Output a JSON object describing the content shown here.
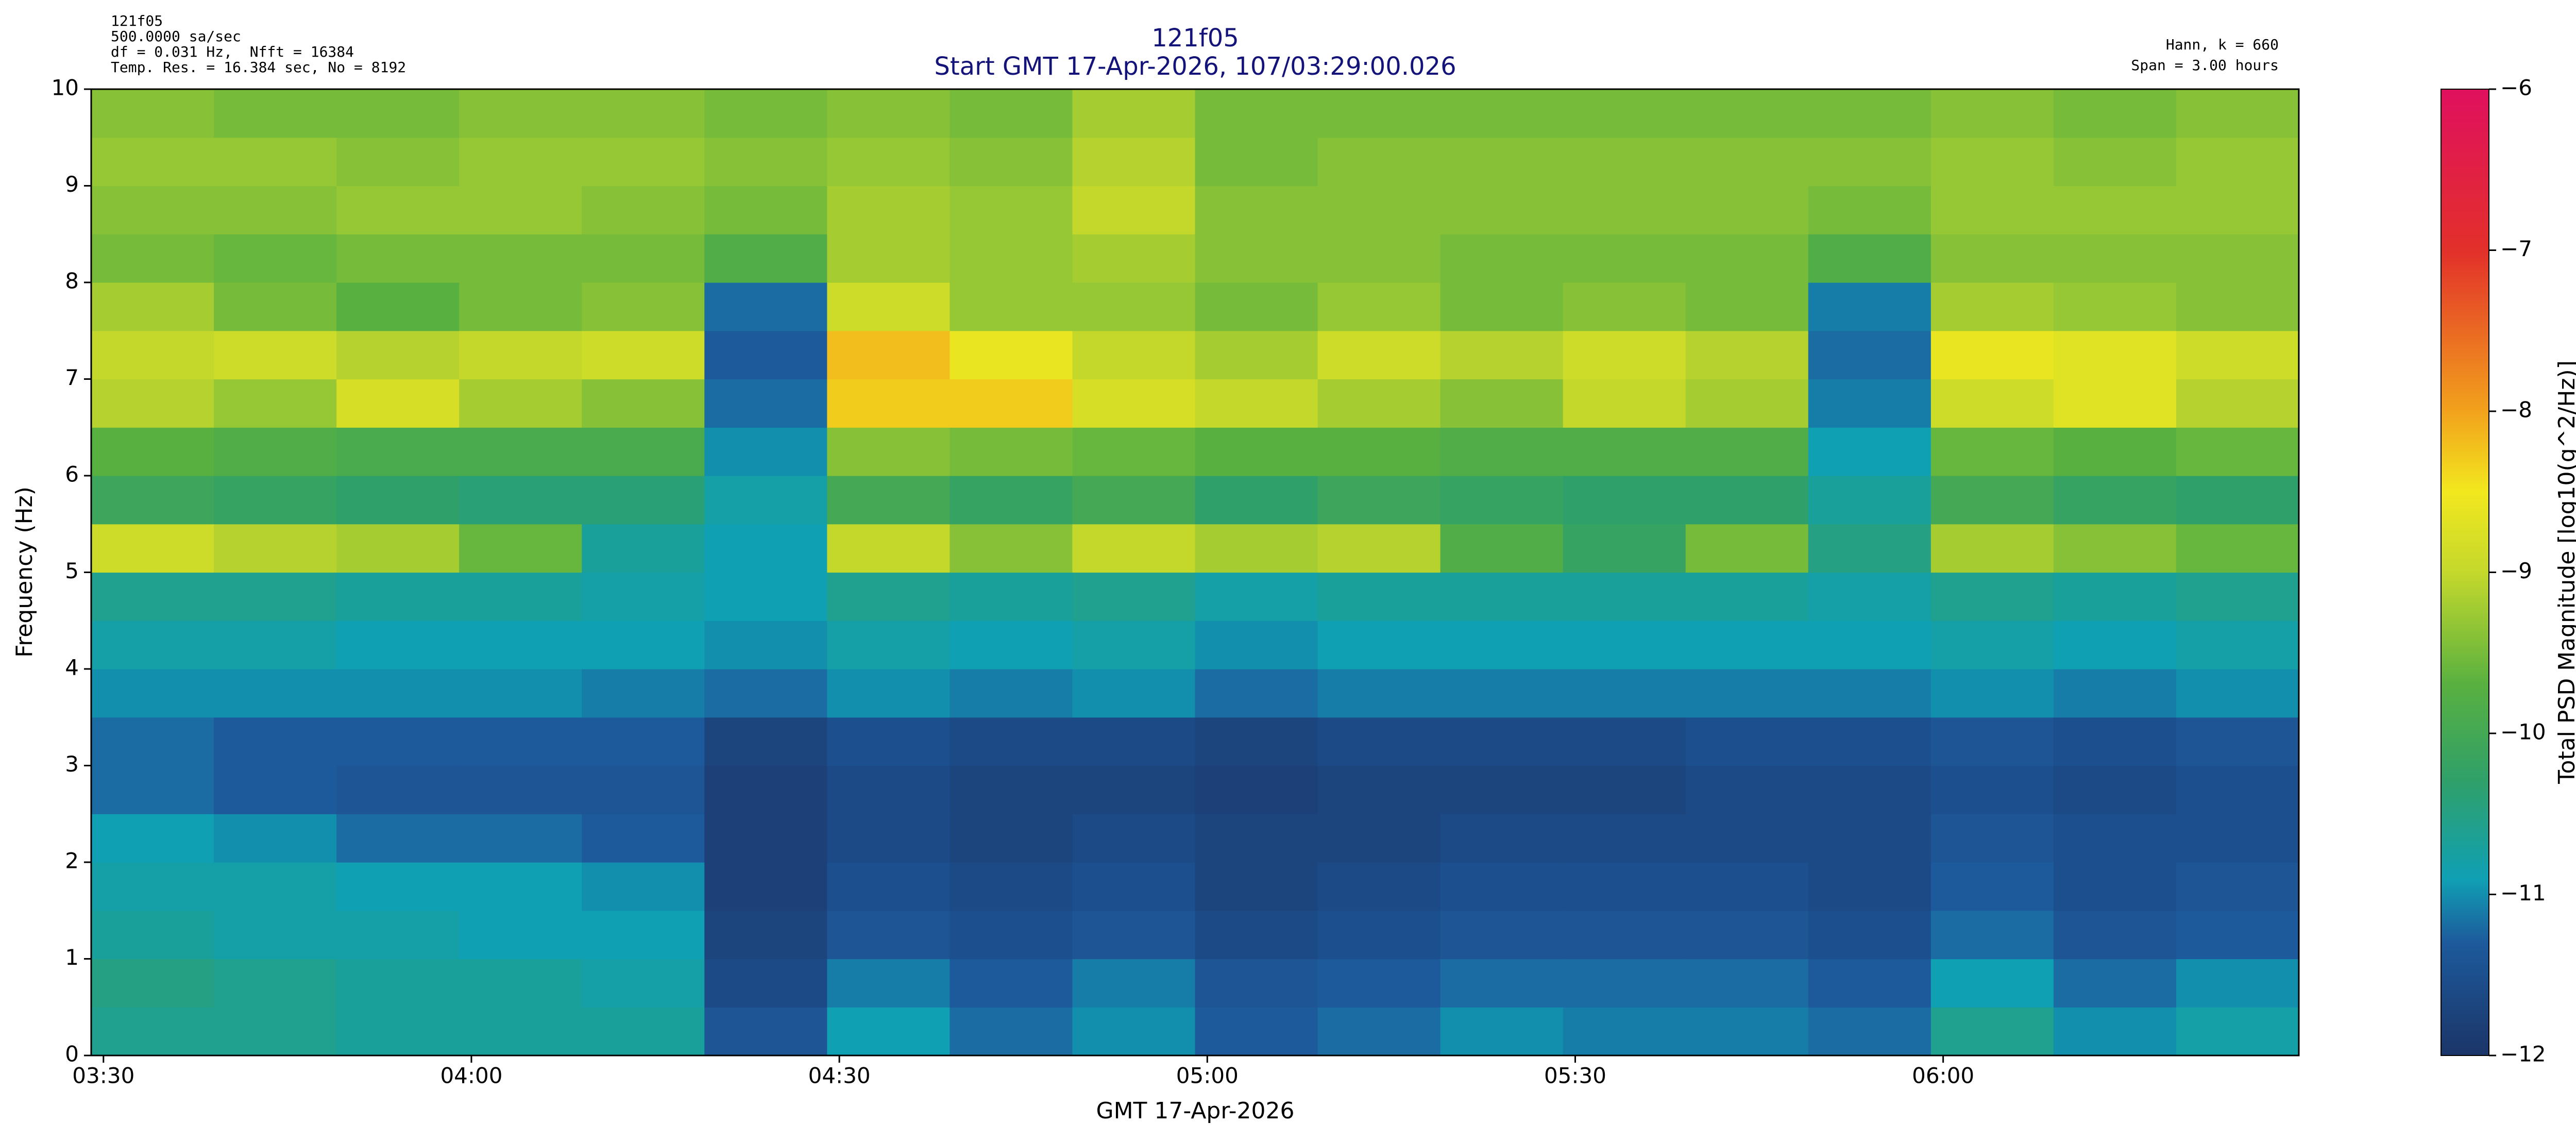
{
  "chart_data": {
    "type": "heatmap",
    "title": "121f05",
    "subtitle": "Start GMT 17-Apr-2026, 107/03:29:00.026",
    "header_left": [
      "121f05",
      "500.0000 sa/sec",
      "df = 0.031 Hz,  Nfft = 16384",
      "Temp. Res. = 16.384 sec, No = 8192"
    ],
    "header_right": [
      "Hann, k = 660",
      "Span = 3.00 hours"
    ],
    "x_label": "GMT 17-Apr-2026",
    "y_label": "Frequency (Hz)",
    "colorbar_label": "Total PSD Magnitude [log10(g^2/Hz)]",
    "xlim": [
      209,
      389
    ],
    "xticks": [
      {
        "value": 210,
        "label": "03:30"
      },
      {
        "value": 240,
        "label": "04:00"
      },
      {
        "value": 270,
        "label": "04:30"
      },
      {
        "value": 300,
        "label": "05:00"
      },
      {
        "value": 330,
        "label": "05:30"
      },
      {
        "value": 360,
        "label": "06:00"
      }
    ],
    "ylim": [
      0,
      10
    ],
    "yticks": [
      0,
      1,
      2,
      3,
      4,
      5,
      6,
      7,
      8,
      9,
      10
    ],
    "clim": [
      -12,
      -6
    ],
    "cticks": [
      {
        "value": -12,
        "label": "−12"
      },
      {
        "value": -11,
        "label": "−11"
      },
      {
        "value": -10,
        "label": "−10"
      },
      {
        "value": -9,
        "label": "−9"
      },
      {
        "value": -8,
        "label": "−8"
      },
      {
        "value": -7,
        "label": "−7"
      },
      {
        "value": -6,
        "label": "−6"
      }
    ],
    "colormap": [
      {
        "value": -12,
        "color": "#1b3568"
      },
      {
        "value": -11.3,
        "color": "#1d5a9c"
      },
      {
        "value": -10.9,
        "color": "#10a0b4"
      },
      {
        "value": -10.3,
        "color": "#2fa06a"
      },
      {
        "value": -9.7,
        "color": "#58b040"
      },
      {
        "value": -9.0,
        "color": "#c4d82c"
      },
      {
        "value": -8.5,
        "color": "#f2e81e"
      },
      {
        "value": -8.0,
        "color": "#f2a21c"
      },
      {
        "value": -7.0,
        "color": "#e2302a"
      },
      {
        "value": -6,
        "color": "#e0105e"
      }
    ],
    "x": [
      209,
      219,
      229,
      239,
      249,
      259,
      269,
      279,
      289,
      299,
      309,
      319,
      329,
      339,
      349,
      359,
      369,
      379,
      389
    ],
    "y": [
      0,
      0.5,
      1,
      1.5,
      2,
      2.5,
      3,
      3.5,
      4,
      4.5,
      5,
      5.5,
      6,
      6.5,
      7,
      7.5,
      8,
      8.5,
      9,
      9.5,
      10
    ],
    "z": [
      [
        -10.6,
        -10.5,
        -10.7,
        -10.8,
        -10.9,
        -11.2,
        -11.2,
        -11,
        -10.8,
        -10.6,
        -8.9,
        -10.1,
        -9.7,
        -9.1,
        -9.0,
        -9.2,
        -9.5,
        -9.4,
        -9.3,
        -9.4
      ],
      [
        -10.6,
        -10.6,
        -10.8,
        -10.8,
        -11.0,
        -11.3,
        -11.3,
        -11.0,
        -10.8,
        -10.6,
        -9.1,
        -10.2,
        -9.8,
        -9.3,
        -8.9,
        -9.5,
        -9.6,
        -9.4,
        -9.3,
        -9.5
      ],
      [
        -10.7,
        -10.7,
        -10.8,
        -10.9,
        -11.2,
        -11.4,
        -11.3,
        -11.0,
        -10.9,
        -10.7,
        -9.2,
        -10.3,
        -9.9,
        -8.8,
        -9.1,
        -9.7,
        -9.5,
        -9.3,
        -9.4,
        -9.5
      ],
      [
        -10.7,
        -10.7,
        -10.9,
        -10.9,
        -11.2,
        -11.4,
        -11.3,
        -11.0,
        -10.9,
        -10.7,
        -9.6,
        -10.4,
        -9.9,
        -9.2,
        -9.0,
        -9.5,
        -9.5,
        -9.3,
        -9.3,
        -9.4
      ],
      [
        -10.7,
        -10.8,
        -10.9,
        -11.0,
        -11.3,
        -11.4,
        -11.3,
        -11.1,
        -10.9,
        -10.8,
        -10.7,
        -10.4,
        -9.9,
        -9.4,
        -8.9,
        -9.4,
        -9.5,
        -9.4,
        -9.3,
        -9.4
      ],
      [
        -11.4,
        -11.6,
        -11.7,
        -11.8,
        -11.8,
        -11.8,
        -11.7,
        -11.2,
        -11.0,
        -10.9,
        -10.9,
        -10.8,
        -11.0,
        -11.2,
        -11.3,
        -11.2,
        -9.8,
        -9.5,
        -9.4,
        -9.5
      ],
      [
        -10.9,
        -11.1,
        -11.4,
        -11.5,
        -11.6,
        -11.6,
        -11.5,
        -11.0,
        -10.8,
        -10.6,
        -9.0,
        -10.0,
        -9.4,
        -8.3,
        -8.2,
        -8.9,
        -9.2,
        -9.2,
        -9.3,
        -9.4
      ],
      [
        -11.2,
        -11.3,
        -11.5,
        -11.6,
        -11.7,
        -11.7,
        -11.6,
        -11.1,
        -10.9,
        -10.7,
        -9.4,
        -10.2,
        -9.5,
        -8.3,
        -8.6,
        -9.3,
        -9.3,
        -9.3,
        -9.4,
        -9.5
      ],
      [
        -11.0,
        -11.1,
        -11.4,
        -11.5,
        -11.6,
        -11.7,
        -11.6,
        -11.0,
        -10.8,
        -10.6,
        -9.0,
        -10.0,
        -9.6,
        -8.8,
        -9.0,
        -9.3,
        -9.2,
        -9.0,
        -9.1,
        -9.2
      ],
      [
        -11.3,
        -11.4,
        -11.6,
        -11.7,
        -11.7,
        -11.8,
        -11.7,
        -11.2,
        -11.0,
        -10.8,
        -9.2,
        -10.3,
        -9.7,
        -9.0,
        -9.2,
        -9.5,
        -9.4,
        -9.4,
        -9.5,
        -9.5
      ],
      [
        -11.2,
        -11.3,
        -11.5,
        -11.6,
        -11.7,
        -11.7,
        -11.6,
        -11.1,
        -10.9,
        -10.7,
        -9.1,
        -10.1,
        -9.7,
        -9.2,
        -8.9,
        -9.3,
        -9.4,
        -9.4,
        -9.4,
        -9.5
      ],
      [
        -11.0,
        -11.2,
        -11.4,
        -11.5,
        -11.6,
        -11.7,
        -11.6,
        -11.1,
        -10.9,
        -10.7,
        -9.8,
        -10.2,
        -9.8,
        -9.4,
        -9.1,
        -9.5,
        -9.5,
        -9.4,
        -9.4,
        -9.5
      ],
      [
        -11.1,
        -11.2,
        -11.4,
        -11.5,
        -11.6,
        -11.7,
        -11.6,
        -11.1,
        -10.9,
        -10.7,
        -10.2,
        -10.3,
        -9.8,
        -9.0,
        -8.9,
        -9.4,
        -9.5,
        -9.4,
        -9.4,
        -9.5
      ],
      [
        -11.1,
        -11.2,
        -11.4,
        -11.5,
        -11.6,
        -11.6,
        -11.5,
        -11.1,
        -10.9,
        -10.7,
        -9.5,
        -10.3,
        -9.8,
        -9.2,
        -9.1,
        -9.5,
        -9.5,
        -9.4,
        -9.4,
        -9.5
      ],
      [
        -11.2,
        -11.3,
        -11.5,
        -11.6,
        -11.6,
        -11.6,
        -11.5,
        -11.1,
        -10.9,
        -10.8,
        -10.5,
        -10.7,
        -10.9,
        -11.1,
        -11.2,
        -11.1,
        -9.8,
        -9.5,
        -9.4,
        -9.5
      ],
      [
        -10.6,
        -10.9,
        -11.2,
        -11.3,
        -11.4,
        -11.5,
        -11.4,
        -11.0,
        -10.8,
        -10.6,
        -9.2,
        -10.0,
        -9.6,
        -8.9,
        -8.6,
        -9.2,
        -9.4,
        -9.3,
        -9.3,
        -9.4
      ],
      [
        -11.0,
        -11.2,
        -11.4,
        -11.5,
        -11.5,
        -11.6,
        -11.5,
        -11.1,
        -10.9,
        -10.7,
        -9.4,
        -10.2,
        -9.7,
        -8.7,
        -8.7,
        -9.3,
        -9.4,
        -9.3,
        -9.4,
        -9.5
      ],
      [
        -10.8,
        -11.0,
        -11.3,
        -11.4,
        -11.5,
        -11.5,
        -11.4,
        -11.0,
        -10.8,
        -10.6,
        -9.6,
        -10.3,
        -9.6,
        -9.1,
        -8.9,
        -9.4,
        -9.4,
        -9.3,
        -9.3,
        -9.4
      ]
    ]
  }
}
